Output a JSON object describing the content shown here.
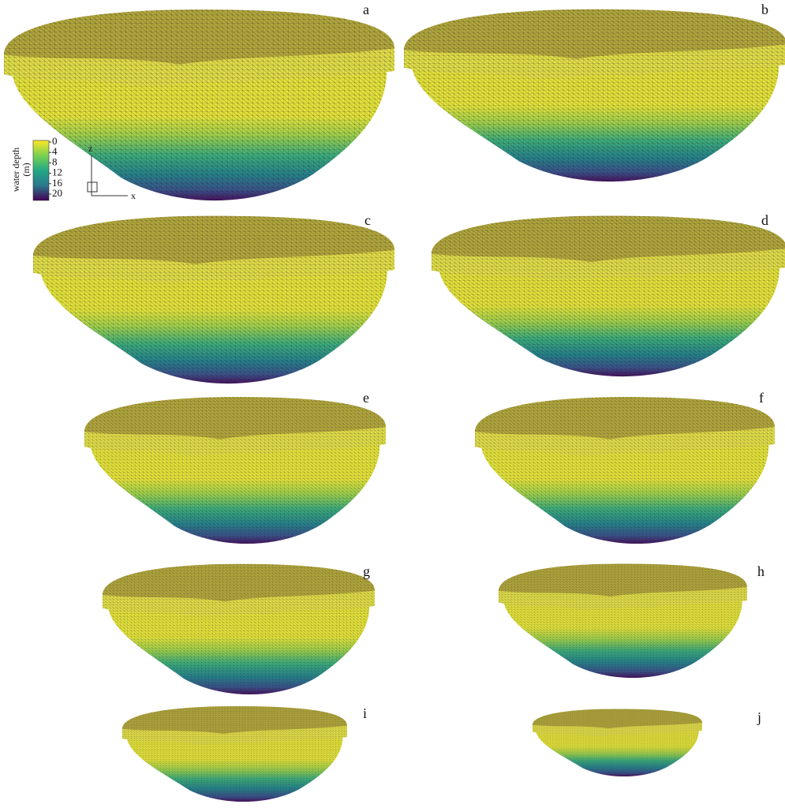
{
  "panels": [
    {
      "label": "a"
    },
    {
      "label": "b"
    },
    {
      "label": "c"
    },
    {
      "label": "d"
    },
    {
      "label": "e"
    },
    {
      "label": "f"
    },
    {
      "label": "g"
    },
    {
      "label": "h"
    },
    {
      "label": "i"
    },
    {
      "label": "j"
    }
  ],
  "colorbar": {
    "title": "water depth",
    "unit": "(m)",
    "ticks": [
      0,
      4,
      8,
      12,
      16,
      20
    ]
  },
  "axes": {
    "z": "z",
    "x": "x"
  }
}
